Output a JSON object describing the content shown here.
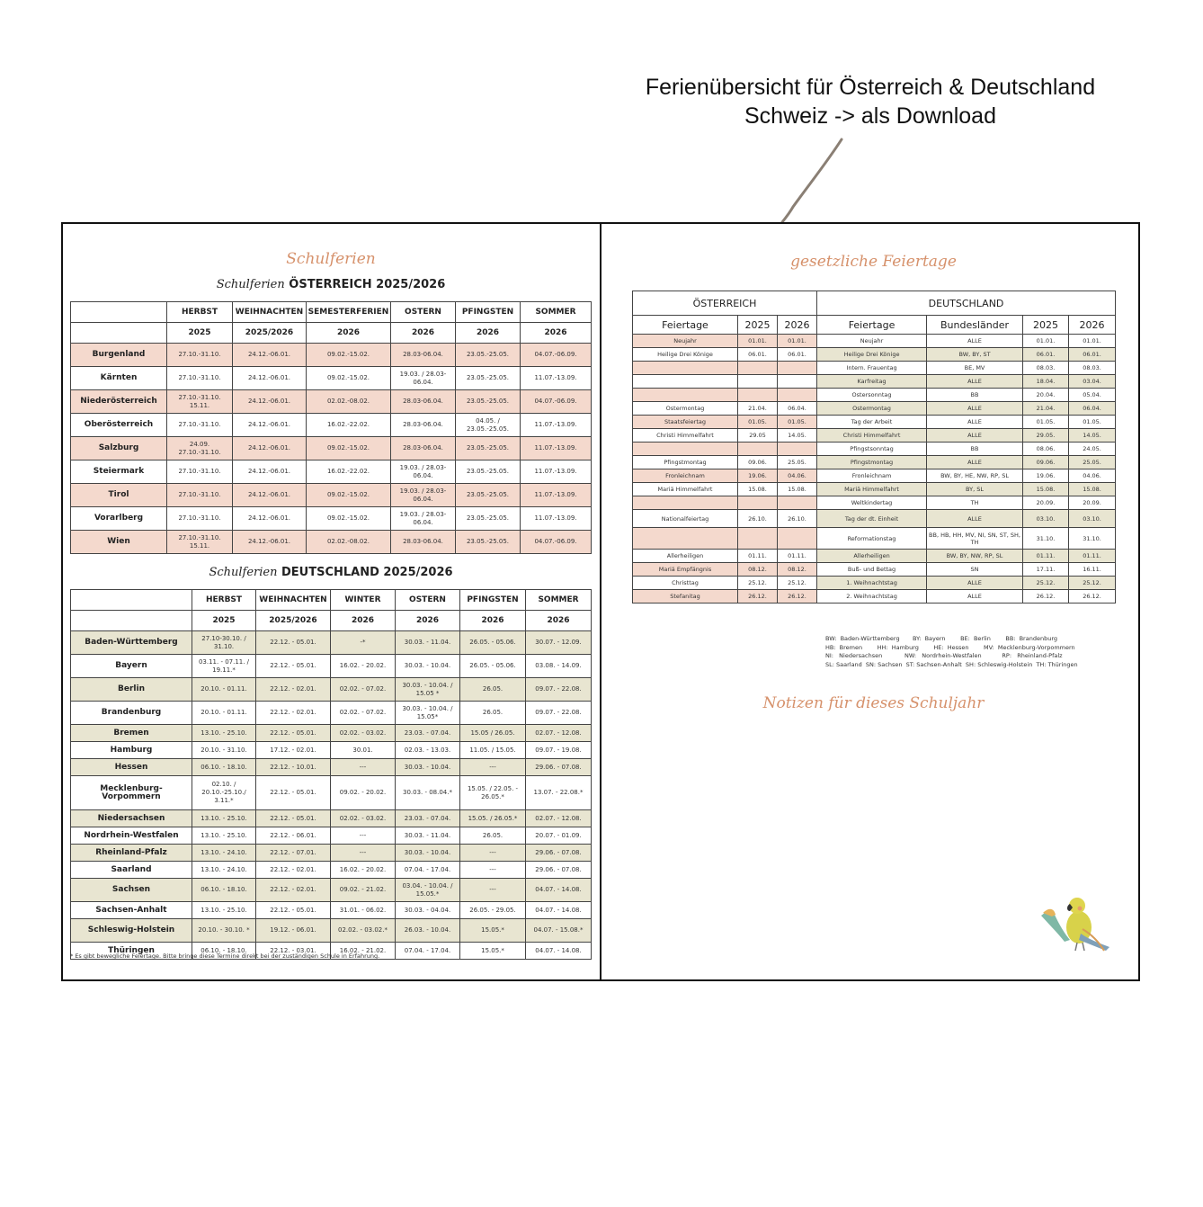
{
  "caption": {
    "line1": "Ferienübersicht für Österreich & Deutschland",
    "line2": "Schweiz -> als Download"
  },
  "left_page": {
    "title": "Schulferien",
    "austria": {
      "heading_script": "Schulferien",
      "heading": "ÖSTERREICH 2025/2026",
      "columns": [
        "HERBST",
        "WEIHNACHTEN",
        "SEMESTERFERIEN",
        "OSTERN",
        "PFINGSTEN",
        "SOMMER"
      ],
      "years": [
        "2025",
        "2025/2026",
        "2026",
        "2026",
        "2026",
        "2026"
      ],
      "rows": [
        {
          "region": "Burgenland",
          "cells": [
            "27.10.-31.10.",
            "24.12.-06.01.",
            "09.02.-15.02.",
            "28.03-06.04.",
            "23.05.-25.05.",
            "04.07.-06.09."
          ]
        },
        {
          "region": "Kärnten",
          "cells": [
            "27.10.-31.10.",
            "24.12.-06.01.",
            "09.02.-15.02.",
            "19.03. / 28.03-06.04.",
            "23.05.-25.05.",
            "11.07.-13.09."
          ]
        },
        {
          "region": "Niederösterreich",
          "cells": [
            "27.10.-31.10. 15.11.",
            "24.12.-06.01.",
            "02.02.-08.02.",
            "28.03-06.04.",
            "23.05.-25.05.",
            "04.07.-06.09."
          ]
        },
        {
          "region": "Oberösterreich",
          "cells": [
            "27.10.-31.10.",
            "24.12.-06.01.",
            "16.02.-22.02.",
            "28.03-06.04.",
            "04.05. / 23.05.-25.05.",
            "11.07.-13.09."
          ]
        },
        {
          "region": "Salzburg",
          "cells": [
            "24.09. 27.10.-31.10.",
            "24.12.-06.01.",
            "09.02.-15.02.",
            "28.03-06.04.",
            "23.05.-25.05.",
            "11.07.-13.09."
          ]
        },
        {
          "region": "Steiermark",
          "cells": [
            "27.10.-31.10.",
            "24.12.-06.01.",
            "16.02.-22.02.",
            "19.03. / 28.03-06.04.",
            "23.05.-25.05.",
            "11.07.-13.09."
          ]
        },
        {
          "region": "Tirol",
          "cells": [
            "27.10.-31.10.",
            "24.12.-06.01.",
            "09.02.-15.02.",
            "19.03. / 28.03-06.04.",
            "23.05.-25.05.",
            "11.07.-13.09."
          ]
        },
        {
          "region": "Vorarlberg",
          "cells": [
            "27.10.-31.10.",
            "24.12.-06.01.",
            "09.02.-15.02.",
            "19.03. / 28.03-06.04.",
            "23.05.-25.05.",
            "11.07.-13.09."
          ]
        },
        {
          "region": "Wien",
          "cells": [
            "27.10.-31.10. 15.11.",
            "24.12.-06.01.",
            "02.02.-08.02.",
            "28.03-06.04.",
            "23.05.-25.05.",
            "04.07.-06.09."
          ]
        }
      ]
    },
    "germany": {
      "heading_script": "Schulferien",
      "heading": "DEUTSCHLAND 2025/2026",
      "columns": [
        "HERBST",
        "WEIHNACHTEN",
        "WINTER",
        "OSTERN",
        "PFINGSTEN",
        "SOMMER"
      ],
      "years": [
        "2025",
        "2025/2026",
        "2026",
        "2026",
        "2026",
        "2026"
      ],
      "rows": [
        {
          "region": "Baden-Württemberg",
          "cells": [
            "27.10-30.10. / 31.10.",
            "22.12. - 05.01.",
            "-*",
            "30.03. - 11.04.",
            "26.05. - 05.06.",
            "30.07. - 12.09."
          ]
        },
        {
          "region": "Bayern",
          "cells": [
            "03.11. - 07.11. / 19.11.*",
            "22.12. - 05.01.",
            "16.02. - 20.02.",
            "30.03. - 10.04.",
            "26.05. - 05.06.",
            "03.08. - 14.09."
          ]
        },
        {
          "region": "Berlin",
          "cells": [
            "20.10. - 01.11.",
            "22.12. - 02.01.",
            "02.02. - 07.02.",
            "30.03. - 10.04. / 15.05 *",
            "26.05.",
            "09.07. - 22.08."
          ]
        },
        {
          "region": "Brandenburg",
          "cells": [
            "20.10. - 01.11.",
            "22.12. - 02.01.",
            "02.02. - 07.02.",
            "30.03. - 10.04. / 15.05*",
            "26.05.",
            "09.07. - 22.08."
          ]
        },
        {
          "region": "Bremen",
          "cells": [
            "13.10. - 25.10.",
            "22.12. - 05.01.",
            "02.02. - 03.02.",
            "23.03. - 07.04.",
            "15.05 / 26.05.",
            "02.07. - 12.08."
          ]
        },
        {
          "region": "Hamburg",
          "cells": [
            "20.10. - 31.10.",
            "17.12. - 02.01.",
            "30.01.",
            "02.03. - 13.03.",
            "11.05. / 15.05.",
            "09.07. - 19.08."
          ]
        },
        {
          "region": "Hessen",
          "cells": [
            "06.10. - 18.10.",
            "22.12. - 10.01.",
            "---",
            "30.03. - 10.04.",
            "---",
            "29.06. - 07.08."
          ]
        },
        {
          "region": "Mecklenburg-Vorpommern",
          "cells": [
            "02.10. / 20.10.-25.10./ 3.11.*",
            "22.12. - 05.01.",
            "09.02. - 20.02.",
            "30.03. - 08.04.*",
            "15.05. / 22.05. - 26.05.*",
            "13.07. - 22.08.*"
          ]
        },
        {
          "region": "Niedersachsen",
          "cells": [
            "13.10. - 25.10.",
            "22.12. - 05.01.",
            "02.02. - 03.02.",
            "23.03. - 07.04.",
            "15.05. / 26.05.*",
            "02.07. - 12.08."
          ]
        },
        {
          "region": "Nordrhein-Westfalen",
          "cells": [
            "13.10. - 25.10.",
            "22.12. - 06.01.",
            "---",
            "30.03. - 11.04.",
            "26.05.",
            "20.07. - 01.09."
          ]
        },
        {
          "region": "Rheinland-Pfalz",
          "cells": [
            "13.10. - 24.10.",
            "22.12. - 07.01.",
            "---",
            "30.03. - 10.04.",
            "---",
            "29.06. - 07.08."
          ]
        },
        {
          "region": "Saarland",
          "cells": [
            "13.10. - 24.10.",
            "22.12. - 02.01.",
            "16.02. - 20.02.",
            "07.04. - 17.04.",
            "---",
            "29.06. - 07.08."
          ]
        },
        {
          "region": "Sachsen",
          "cells": [
            "06.10. - 18.10.",
            "22.12. - 02.01.",
            "09.02. - 21.02.",
            "03.04. - 10.04. / 15.05.*",
            "---",
            "04.07. - 14.08."
          ]
        },
        {
          "region": "Sachsen-Anhalt",
          "cells": [
            "13.10. - 25.10.",
            "22.12. - 05.01.",
            "31.01. - 06.02.",
            "30.03. - 04.04.",
            "26.05. - 29.05.",
            "04.07. - 14.08."
          ]
        },
        {
          "region": "Schleswig-Holstein",
          "cells": [
            "20.10. - 30.10. *",
            "19.12. - 06.01.",
            "02.02. - 03.02.*",
            "26.03. - 10.04.",
            "15.05.*",
            "04.07. - 15.08.*"
          ]
        },
        {
          "region": "Thüringen",
          "cells": [
            "06.10. - 18.10.",
            "22.12. - 03.01.",
            "16.02. - 21.02.",
            "07.04. - 17.04.",
            "15.05.*",
            "04.07. - 14.08."
          ]
        }
      ],
      "footnote": "* Es gibt bewegliche Feiertage. Bitte bringe diese Termine direkt bei der zuständigen Schule in Erfahrung."
    }
  },
  "right_page": {
    "title": "gesetzliche Feiertage",
    "header": {
      "austria": "ÖSTERREICH",
      "germany": "DEUTSCHLAND"
    },
    "columns": {
      "holiday": "Feiertage",
      "states": "Bundesländer",
      "y2025": "2025",
      "y2026": "2026"
    },
    "rows": [
      {
        "at": [
          "Neujahr",
          "01.01.",
          "01.01."
        ],
        "de": [
          "Neujahr",
          "ALLE",
          "01.01.",
          "01.01."
        ]
      },
      {
        "at": [
          "Heilige Drei Könige",
          "06.01.",
          "06.01."
        ],
        "de": [
          "Heilige Drei Könige",
          "BW, BY, ST",
          "06.01.",
          "06.01."
        ]
      },
      {
        "at": [
          "",
          "",
          ""
        ],
        "de": [
          "Intern. Frauentag",
          "BE, MV",
          "08.03.",
          "08.03."
        ]
      },
      {
        "at": [
          "",
          "",
          ""
        ],
        "de": [
          "Karfreitag",
          "ALLE",
          "18.04.",
          "03.04."
        ]
      },
      {
        "at": [
          "",
          "",
          ""
        ],
        "de": [
          "Ostersonntag",
          "BB",
          "20.04.",
          "05.04."
        ]
      },
      {
        "at": [
          "Ostermontag",
          "21.04.",
          "06.04."
        ],
        "de": [
          "Ostermontag",
          "ALLE",
          "21.04.",
          "06.04."
        ]
      },
      {
        "at": [
          "Staatsfeiertag",
          "01.05.",
          "01.05."
        ],
        "de": [
          "Tag der Arbeit",
          "ALLE",
          "01.05.",
          "01.05."
        ]
      },
      {
        "at": [
          "Christi Himmelfahrt",
          "29.05",
          "14.05."
        ],
        "de": [
          "Christi Himmelfahrt",
          "ALLE",
          "29.05.",
          "14.05."
        ]
      },
      {
        "at": [
          "",
          "",
          ""
        ],
        "de": [
          "Pfingstsonntag",
          "BB",
          "08.06.",
          "24.05."
        ]
      },
      {
        "at": [
          "Pfingstmontag",
          "09.06.",
          "25.05."
        ],
        "de": [
          "Pfingstmontag",
          "ALLE",
          "09.06.",
          "25.05."
        ]
      },
      {
        "at": [
          "Fronleichnam",
          "19.06.",
          "04.06."
        ],
        "de": [
          "Fronleichnam",
          "BW, BY, HE, NW, RP, SL",
          "19.06.",
          "04.06."
        ]
      },
      {
        "at": [
          "Mariä Himmelfahrt",
          "15.08.",
          "15.08."
        ],
        "de": [
          "Mariä Himmelfahrt",
          "BY, SL",
          "15.08.",
          "15.08."
        ]
      },
      {
        "at": [
          "",
          "",
          ""
        ],
        "de": [
          "Weltkindertag",
          "TH",
          "20.09.",
          "20.09."
        ]
      },
      {
        "at": [
          "Nationalfeiertag",
          "26.10.",
          "26.10."
        ],
        "de": [
          "Tag der dt. Einheit",
          "ALLE",
          "03.10.",
          "03.10."
        ]
      },
      {
        "at": [
          "",
          "",
          ""
        ],
        "de": [
          "Reformationstag",
          "BB, HB, HH, MV, NI, SN, ST, SH, TH",
          "31.10.",
          "31.10."
        ]
      },
      {
        "at": [
          "Allerheiligen",
          "01.11.",
          "01.11."
        ],
        "de": [
          "Allerheiligen",
          "BW, BY, NW, RP, SL",
          "01.11.",
          "01.11."
        ]
      },
      {
        "at": [
          "Mariä Empfängnis",
          "08.12.",
          "08.12."
        ],
        "de": [
          "Buß- und Bettag",
          "SN",
          "17.11.",
          "16.11."
        ]
      },
      {
        "at": [
          "Christtag",
          "25.12.",
          "25.12."
        ],
        "de": [
          "1. Weihnachtstag",
          "ALLE",
          "25.12.",
          "25.12."
        ]
      },
      {
        "at": [
          "Stefanitag",
          "26.12.",
          "26.12."
        ],
        "de": [
          "2. Weihnachtstag",
          "ALLE",
          "26.12.",
          "26.12."
        ]
      }
    ],
    "legend": "BW:  Baden-Württemberg       BY:  Bayern        BE:  Berlin        BB:  Brandenburg\nHB:  Bremen        HH:  Hamburg        HE:  Hessen        MV:  Mecklenburg-Vorpommern\nNI:   Niedersachsen            NW:   Nordrhein-Westfalen           RP:   Rheinland-Pfalz\nSL: Saarland  SN: Sachsen  ST: Sachsen-Anhalt  SH: Schleswig-Holstein  TH: Thüringen",
    "notes_title": "Notizen für dieses Schuljahr"
  },
  "colors": {
    "austria_row": "#f4d9cd",
    "germany_row": "#e8e5d1",
    "title": "#d6916b",
    "border": "#444444"
  },
  "icons": [
    "pencil-stroke",
    "parrot-illustration"
  ]
}
